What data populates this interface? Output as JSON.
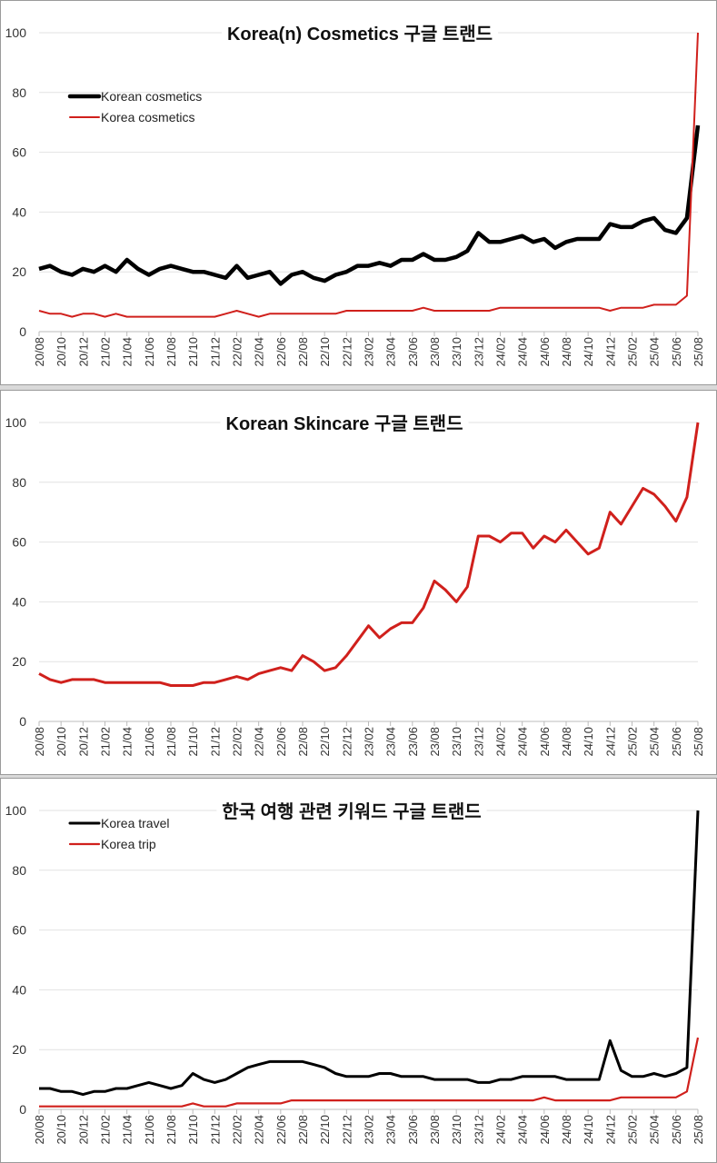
{
  "chart_data": [
    {
      "type": "line",
      "title": "Korea(n) Cosmetics 구글 트랜드",
      "ylim": [
        0,
        100
      ],
      "y_ticks": [
        "0",
        "20",
        "40",
        "60",
        "80",
        "100"
      ],
      "grid": true,
      "legend": "top-left",
      "x": [
        "20/08",
        "20/09",
        "20/10",
        "20/11",
        "20/12",
        "21/01",
        "21/02",
        "21/03",
        "21/04",
        "21/05",
        "21/06",
        "21/07",
        "21/08",
        "21/09",
        "21/10",
        "21/11",
        "21/12",
        "22/01",
        "22/02",
        "22/03",
        "22/04",
        "22/05",
        "22/06",
        "22/07",
        "22/08",
        "22/09",
        "22/10",
        "22/11",
        "22/12",
        "23/01",
        "23/02",
        "23/03",
        "23/04",
        "23/05",
        "23/06",
        "23/07",
        "23/08",
        "23/09",
        "23/10",
        "23/11",
        "23/12",
        "24/01",
        "24/02",
        "24/03",
        "24/04",
        "24/05",
        "24/06",
        "24/07",
        "24/08",
        "24/09",
        "24/10",
        "24/11",
        "24/12",
        "25/01",
        "25/02",
        "25/03",
        "25/04",
        "25/05",
        "25/06",
        "25/07",
        "25/08"
      ],
      "x_ticks": [
        "20/08",
        "20/10",
        "20/12",
        "21/02",
        "21/04",
        "21/06",
        "21/08",
        "21/10",
        "21/12",
        "22/02",
        "22/04",
        "22/06",
        "22/08",
        "22/10",
        "22/12",
        "23/02",
        "23/04",
        "23/06",
        "23/08",
        "23/10",
        "23/12",
        "24/02",
        "24/04",
        "24/06",
        "24/08",
        "24/10",
        "24/12",
        "25/02",
        "25/04",
        "25/06",
        "25/08"
      ],
      "series": [
        {
          "name": "Korean cosmetics",
          "color": "#000000",
          "values": [
            21,
            22,
            20,
            19,
            21,
            20,
            22,
            20,
            24,
            21,
            19,
            21,
            22,
            21,
            20,
            20,
            19,
            18,
            22,
            18,
            19,
            20,
            16,
            19,
            20,
            18,
            17,
            19,
            20,
            22,
            22,
            23,
            22,
            24,
            24,
            26,
            24,
            24,
            25,
            27,
            33,
            30,
            30,
            31,
            32,
            30,
            31,
            28,
            30,
            31,
            31,
            31,
            36,
            35,
            35,
            37,
            38,
            34,
            33,
            38,
            69
          ]
        },
        {
          "name": "Korea cosmetics",
          "color": "#d0201c",
          "values": [
            7,
            6,
            6,
            5,
            6,
            6,
            5,
            6,
            5,
            5,
            5,
            5,
            5,
            5,
            5,
            5,
            5,
            6,
            7,
            6,
            5,
            6,
            6,
            6,
            6,
            6,
            6,
            6,
            7,
            7,
            7,
            7,
            7,
            7,
            7,
            8,
            7,
            7,
            7,
            7,
            7,
            7,
            8,
            8,
            8,
            8,
            8,
            8,
            8,
            8,
            8,
            8,
            7,
            8,
            8,
            8,
            9,
            9,
            9,
            12,
            100
          ]
        }
      ]
    },
    {
      "type": "line",
      "title": "Korean Skincare 구글 트랜드",
      "ylim": [
        0,
        100
      ],
      "y_ticks": [
        "0",
        "20",
        "40",
        "60",
        "80",
        "100"
      ],
      "grid": true,
      "x": [
        "20/08",
        "20/09",
        "20/10",
        "20/11",
        "20/12",
        "21/01",
        "21/02",
        "21/03",
        "21/04",
        "21/05",
        "21/06",
        "21/07",
        "21/08",
        "21/09",
        "21/10",
        "21/11",
        "21/12",
        "22/01",
        "22/02",
        "22/03",
        "22/04",
        "22/05",
        "22/06",
        "22/07",
        "22/08",
        "22/09",
        "22/10",
        "22/11",
        "22/12",
        "23/01",
        "23/02",
        "23/03",
        "23/04",
        "23/05",
        "23/06",
        "23/07",
        "23/08",
        "23/09",
        "23/10",
        "23/11",
        "23/12",
        "24/01",
        "24/02",
        "24/03",
        "24/04",
        "24/05",
        "24/06",
        "24/07",
        "24/08",
        "24/09",
        "24/10",
        "24/11",
        "24/12",
        "25/01",
        "25/02",
        "25/03",
        "25/04",
        "25/05",
        "25/06",
        "25/07",
        "25/08"
      ],
      "x_ticks": [
        "20/08",
        "20/10",
        "20/12",
        "21/02",
        "21/04",
        "21/06",
        "21/08",
        "21/10",
        "21/12",
        "22/02",
        "22/04",
        "22/06",
        "22/08",
        "22/10",
        "22/12",
        "23/02",
        "23/04",
        "23/06",
        "23/08",
        "23/10",
        "23/12",
        "24/02",
        "24/04",
        "24/06",
        "24/08",
        "24/10",
        "24/12",
        "25/02",
        "25/04",
        "25/06",
        "25/08"
      ],
      "series": [
        {
          "color": "#d0201c",
          "values": [
            16,
            14,
            13,
            14,
            14,
            14,
            13,
            13,
            13,
            13,
            13,
            13,
            12,
            12,
            12,
            13,
            13,
            14,
            15,
            14,
            16,
            17,
            18,
            17,
            22,
            20,
            17,
            18,
            22,
            27,
            32,
            28,
            31,
            33,
            33,
            38,
            47,
            44,
            40,
            45,
            62,
            62,
            60,
            63,
            63,
            58,
            62,
            60,
            64,
            60,
            56,
            58,
            70,
            66,
            72,
            78,
            76,
            72,
            67,
            75,
            100
          ]
        }
      ]
    },
    {
      "type": "line",
      "title": "한국 여행 관련 키워드 구글 트랜드",
      "ylim": [
        0,
        100
      ],
      "y_ticks": [
        "0",
        "20",
        "40",
        "60",
        "80",
        "100"
      ],
      "grid": true,
      "legend": "top-left",
      "x": [
        "20/08",
        "20/09",
        "20/10",
        "20/11",
        "20/12",
        "21/01",
        "21/02",
        "21/03",
        "21/04",
        "21/05",
        "21/06",
        "21/07",
        "21/08",
        "21/09",
        "21/10",
        "21/11",
        "21/12",
        "22/01",
        "22/02",
        "22/03",
        "22/04",
        "22/05",
        "22/06",
        "22/07",
        "22/08",
        "22/09",
        "22/10",
        "22/11",
        "22/12",
        "23/01",
        "23/02",
        "23/03",
        "23/04",
        "23/05",
        "23/06",
        "23/07",
        "23/08",
        "23/09",
        "23/10",
        "23/11",
        "23/12",
        "24/01",
        "24/02",
        "24/03",
        "24/04",
        "24/05",
        "24/06",
        "24/07",
        "24/08",
        "24/09",
        "24/10",
        "24/11",
        "24/12",
        "25/01",
        "25/02",
        "25/03",
        "25/04",
        "25/05",
        "25/06",
        "25/07",
        "25/08"
      ],
      "x_ticks": [
        "20/08",
        "20/10",
        "20/12",
        "21/02",
        "21/04",
        "21/06",
        "21/08",
        "21/10",
        "21/12",
        "22/02",
        "22/04",
        "22/06",
        "22/08",
        "22/10",
        "22/12",
        "23/02",
        "23/04",
        "23/06",
        "23/08",
        "23/10",
        "23/12",
        "24/02",
        "24/04",
        "24/06",
        "24/08",
        "24/10",
        "24/12",
        "25/02",
        "25/04",
        "25/06",
        "25/08"
      ],
      "series": [
        {
          "name": "Korea travel",
          "color": "#000000",
          "values": [
            7,
            7,
            6,
            6,
            5,
            6,
            6,
            7,
            7,
            8,
            9,
            8,
            7,
            8,
            12,
            10,
            9,
            10,
            12,
            14,
            15,
            16,
            16,
            16,
            16,
            15,
            14,
            12,
            11,
            11,
            11,
            12,
            12,
            11,
            11,
            11,
            10,
            10,
            10,
            10,
            9,
            9,
            10,
            10,
            11,
            11,
            11,
            11,
            10,
            10,
            10,
            10,
            23,
            13,
            11,
            11,
            12,
            11,
            12,
            14,
            100
          ]
        },
        {
          "name": "Korea trip",
          "color": "#d0201c",
          "values": [
            1,
            1,
            1,
            1,
            1,
            1,
            1,
            1,
            1,
            1,
            1,
            1,
            1,
            1,
            2,
            1,
            1,
            1,
            2,
            2,
            2,
            2,
            2,
            3,
            3,
            3,
            3,
            3,
            3,
            3,
            3,
            3,
            3,
            3,
            3,
            3,
            3,
            3,
            3,
            3,
            3,
            3,
            3,
            3,
            3,
            3,
            4,
            3,
            3,
            3,
            3,
            3,
            3,
            4,
            4,
            4,
            4,
            4,
            4,
            6,
            24
          ]
        }
      ]
    }
  ]
}
